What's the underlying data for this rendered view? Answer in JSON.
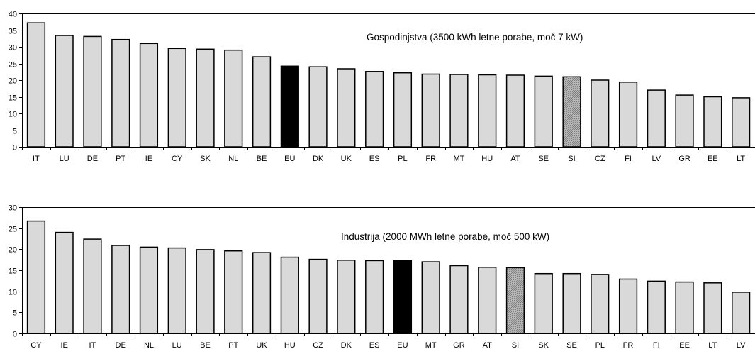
{
  "colors": {
    "bar_default": "#d9d9d9",
    "bar_eu": "#000000",
    "bar_si_pattern": "crosshatch-gray",
    "axis": "#000000"
  },
  "chart_data": [
    {
      "type": "bar",
      "annotation": "Gospodinjstva (3500 kWh letne porabe, moč 7 kW)",
      "title": "",
      "xlabel": "",
      "ylabel": "",
      "ylim": [
        0,
        40
      ],
      "yticks": [
        0,
        5,
        10,
        15,
        20,
        25,
        30,
        35,
        40
      ],
      "categories": [
        "IT",
        "LU",
        "DE",
        "PT",
        "IE",
        "CY",
        "SK",
        "NL",
        "BE",
        "EU",
        "DK",
        "UK",
        "ES",
        "PL",
        "FR",
        "MT",
        "HU",
        "AT",
        "SE",
        "SI",
        "CZ",
        "FI",
        "LV",
        "GR",
        "EE",
        "LT"
      ],
      "values": [
        37.2,
        33.4,
        33.1,
        32.2,
        31.0,
        29.5,
        29.3,
        29.0,
        27.0,
        24.2,
        24.0,
        23.4,
        22.6,
        22.2,
        21.8,
        21.7,
        21.6,
        21.5,
        21.2,
        21.0,
        20.0,
        19.4,
        17.0,
        15.5,
        15.0,
        14.7
      ],
      "highlight": {
        "EU": "black",
        "SI": "hatched"
      },
      "grid": false
    },
    {
      "type": "bar",
      "annotation": "Industrija (2000 MWh letne porabe, moč 500 kW)",
      "title": "",
      "xlabel": "",
      "ylabel": "",
      "ylim": [
        0,
        30
      ],
      "yticks": [
        0,
        5,
        10,
        15,
        20,
        25,
        30
      ],
      "categories": [
        "CY",
        "IE",
        "IT",
        "DE",
        "NL",
        "LU",
        "BE",
        "PT",
        "UK",
        "HU",
        "CZ",
        "DK",
        "ES",
        "EU",
        "MT",
        "GR",
        "AT",
        "SI",
        "SK",
        "SE",
        "PL",
        "FR",
        "FI",
        "EE",
        "LT",
        "LV"
      ],
      "values": [
        26.7,
        24.0,
        22.4,
        20.9,
        20.5,
        20.3,
        19.9,
        19.6,
        19.2,
        18.1,
        17.6,
        17.4,
        17.3,
        17.3,
        17.0,
        16.1,
        15.7,
        15.6,
        14.2,
        14.2,
        14.0,
        12.9,
        12.4,
        12.2,
        12.0,
        9.8
      ],
      "highlight": {
        "EU": "black",
        "SI": "hatched"
      },
      "grid": false
    }
  ]
}
